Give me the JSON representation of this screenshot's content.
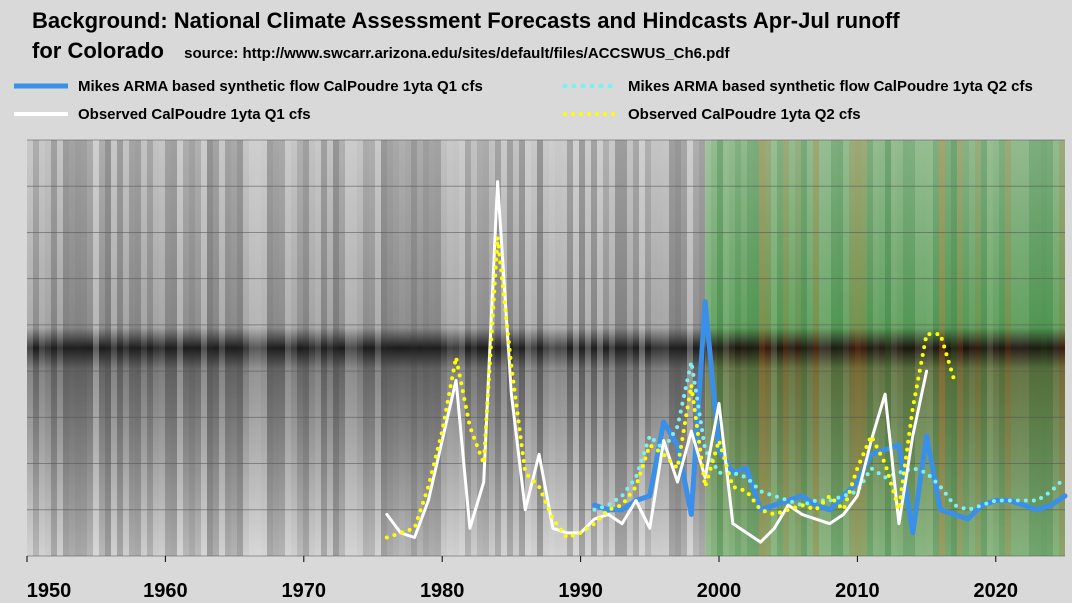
{
  "header": {
    "title_line1": "Background: National Climate Assessment Forecasts and Hindcasts Apr-Jul runoff",
    "title_line2": "for Colorado",
    "source": "source:  http://www.swcarr.arizona.edu/sites/default/files/ACCSWUS_Ch6.pdf"
  },
  "colors": {
    "arma_q1": "#3a8fe8",
    "arma_q2": "#7ef0f0",
    "obs_q1": "#ffffff",
    "obs_q2": "#ffff00",
    "page_bg": "#d9d9d9"
  },
  "chart_data": {
    "type": "line",
    "title": "Background: National Climate Assessment Forecasts and Hindcasts Apr-Jul runoff for Colorado",
    "xlim": [
      1950,
      2025
    ],
    "ylim": [
      0,
      9
    ],
    "x_ticks": [
      1950,
      1960,
      1970,
      1980,
      1990,
      2000,
      2010,
      2020
    ],
    "y_grid": true,
    "legend_position": "top",
    "series": [
      {
        "name": "Mikes ARMA based synthetic flow CalPoudre 1yta Q1 cfs",
        "style": "solid",
        "color": "#3a8fe8",
        "x": [
          1991,
          1992,
          1993,
          1994,
          1995,
          1996,
          1997,
          1998,
          1999,
          2000,
          2001,
          2002,
          2003,
          2004,
          2005,
          2006,
          2007,
          2008,
          2009,
          2010,
          2011,
          2012,
          2013,
          2014,
          2015,
          2016,
          2017,
          2018,
          2019,
          2020,
          2021,
          2022,
          2023,
          2024,
          2025
        ],
        "y": [
          1.1,
          1.0,
          1.0,
          1.2,
          1.3,
          2.9,
          2.4,
          0.9,
          5.5,
          2.3,
          1.8,
          1.9,
          1.0,
          1.1,
          1.2,
          1.3,
          1.1,
          1.0,
          1.3,
          1.6,
          2.2,
          2.3,
          2.4,
          0.5,
          2.6,
          1.0,
          0.9,
          0.8,
          1.1,
          1.2,
          1.2,
          1.1,
          1.0,
          1.1,
          1.3
        ]
      },
      {
        "name": "Mikes ARMA based synthetic flow CalPoudre 1yta Q2 cfs",
        "style": "dotted",
        "color": "#7ef0f0",
        "x": [
          1991,
          1992,
          1993,
          1994,
          1995,
          1996,
          1997,
          1998,
          1999,
          2000,
          2001,
          2002,
          2003,
          2004,
          2005,
          2006,
          2007,
          2008,
          2009,
          2010,
          2011,
          2012,
          2013,
          2014,
          2015,
          2016,
          2017,
          2018,
          2019,
          2020,
          2021,
          2022,
          2023,
          2024,
          2025
        ],
        "y": [
          1.0,
          1.1,
          1.3,
          1.7,
          2.6,
          2.3,
          2.8,
          4.2,
          2.3,
          1.8,
          1.8,
          1.7,
          1.4,
          1.3,
          1.2,
          1.1,
          1.2,
          1.2,
          1.3,
          1.4,
          1.9,
          1.7,
          1.8,
          1.9,
          1.8,
          1.5,
          1.1,
          1.0,
          1.1,
          1.2,
          1.2,
          1.2,
          1.2,
          1.4,
          1.7
        ]
      },
      {
        "name": "Observed CalPoudre 1yta Q1 cfs",
        "style": "solid",
        "color": "#ffffff",
        "x": [
          1976,
          1977,
          1978,
          1979,
          1980,
          1981,
          1982,
          1983,
          1984,
          1985,
          1986,
          1987,
          1988,
          1989,
          1990,
          1991,
          1992,
          1993,
          1994,
          1995,
          1996,
          1997,
          1998,
          1999,
          2000,
          2001,
          2002,
          2003,
          2004,
          2005,
          2006,
          2007,
          2008,
          2009,
          2010,
          2011,
          2012,
          2013,
          2014,
          2015
        ],
        "y": [
          0.9,
          0.5,
          0.4,
          1.2,
          2.5,
          3.8,
          0.6,
          1.6,
          8.1,
          3.5,
          1.0,
          2.2,
          0.6,
          0.5,
          0.5,
          0.8,
          0.9,
          0.7,
          1.2,
          0.6,
          2.5,
          1.6,
          2.7,
          1.7,
          3.3,
          0.7,
          0.5,
          0.3,
          0.6,
          1.1,
          0.9,
          0.8,
          0.7,
          0.9,
          1.3,
          2.5,
          3.5,
          0.7,
          2.6,
          4.0
        ]
      },
      {
        "name": "Observed CalPoudre 1yta Q2 cfs",
        "style": "dotted",
        "color": "#ffff00",
        "x": [
          1976,
          1977,
          1978,
          1979,
          1980,
          1981,
          1982,
          1983,
          1984,
          1985,
          1986,
          1987,
          1988,
          1989,
          1990,
          1991,
          1992,
          1993,
          1994,
          1995,
          1996,
          1997,
          1998,
          1999,
          2000,
          2001,
          2002,
          2003,
          2004,
          2005,
          2006,
          2007,
          2008,
          2009,
          2010,
          2011,
          2012,
          2013,
          2014,
          2015,
          2016,
          2017
        ],
        "y": [
          0.4,
          0.5,
          0.6,
          1.5,
          2.7,
          4.3,
          2.8,
          2.0,
          6.9,
          4.1,
          1.8,
          1.5,
          0.8,
          0.4,
          0.5,
          0.7,
          1.0,
          1.1,
          1.5,
          2.4,
          2.2,
          1.9,
          3.7,
          1.5,
          2.5,
          1.5,
          1.4,
          1.0,
          0.9,
          1.0,
          1.1,
          1.0,
          1.3,
          1.0,
          1.9,
          2.6,
          2.0,
          1.0,
          3.2,
          4.8,
          4.8,
          3.8
        ]
      }
    ],
    "background_bands": [
      {
        "name": "grayscale hindcast",
        "x_start": 1950,
        "x_end": 1999
      },
      {
        "name": "color forecast",
        "x_start": 1999,
        "x_end": 2025
      }
    ]
  }
}
